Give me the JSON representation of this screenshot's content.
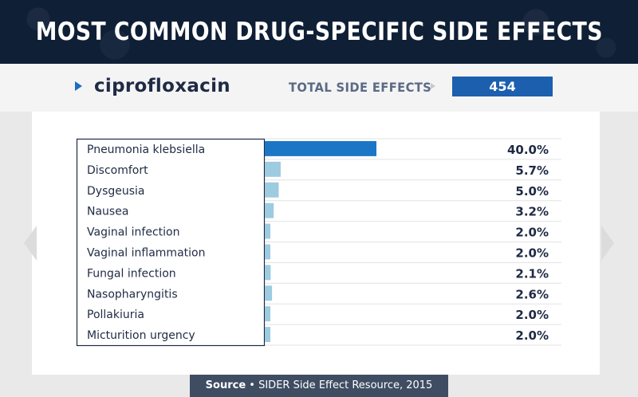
{
  "header": {
    "title": "MOST COMMON DRUG-SPECIFIC SIDE EFFECTS"
  },
  "drug": {
    "name": "ciprofloxacin"
  },
  "total": {
    "label": "TOTAL SIDE EFFECTS",
    "value": "454"
  },
  "source": {
    "label": "Source",
    "separator": "•",
    "text": "SIDER Side Effect Resource, 2015"
  },
  "colors": {
    "top_bar": "#1c76c6",
    "other_bars": "#9dcbe0",
    "header_bg": "#0f1f36",
    "total_box": "#1c5fae"
  },
  "icons": {
    "prev": "chevron-left-icon",
    "next": "chevron-right-icon"
  },
  "chart_data": {
    "type": "bar",
    "orientation": "horizontal",
    "title": "",
    "xlabel": "",
    "ylabel": "",
    "xlim": [
      0,
      100
    ],
    "grid": true,
    "categories": [
      "Pneumonia klebsiella",
      "Discomfort",
      "Dysgeusia",
      "Nausea",
      "Vaginal infection",
      "Vaginal inflammation",
      "Fungal infection",
      "Nasopharyngitis",
      "Pollakiuria",
      "Micturition urgency"
    ],
    "values": [
      40.0,
      5.7,
      5.0,
      3.2,
      2.0,
      2.0,
      2.1,
      2.6,
      2.0,
      2.0
    ],
    "value_labels": [
      "40.0%",
      "5.7%",
      "5.0%",
      "3.2%",
      "2.0%",
      "2.0%",
      "2.1%",
      "2.6%",
      "2.0%",
      "2.0%"
    ]
  }
}
